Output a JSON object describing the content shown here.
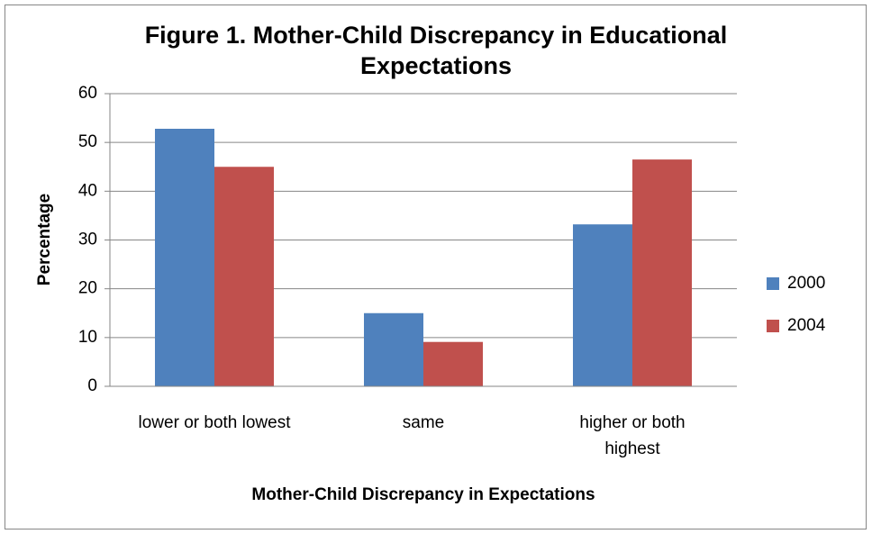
{
  "chart_data": {
    "type": "bar",
    "title": "Figure 1. Mother-Child Discrepancy in Educational Expectations",
    "x_label": "Mother-Child Discrepancy in Expectations",
    "y_label": "Percentage",
    "categories": [
      "lower or both lowest",
      "same",
      "higher or both highest"
    ],
    "series": [
      {
        "name": "2000",
        "color": "#4f81bd",
        "values": [
          52.8,
          15,
          33.2
        ]
      },
      {
        "name": "2004",
        "color": "#c0504d",
        "values": [
          45,
          9.1,
          46.5
        ]
      }
    ],
    "ylim": [
      0,
      60
    ],
    "yticks": [
      0,
      10,
      20,
      30,
      40,
      50,
      60
    ],
    "grid": true,
    "legend": "right"
  }
}
